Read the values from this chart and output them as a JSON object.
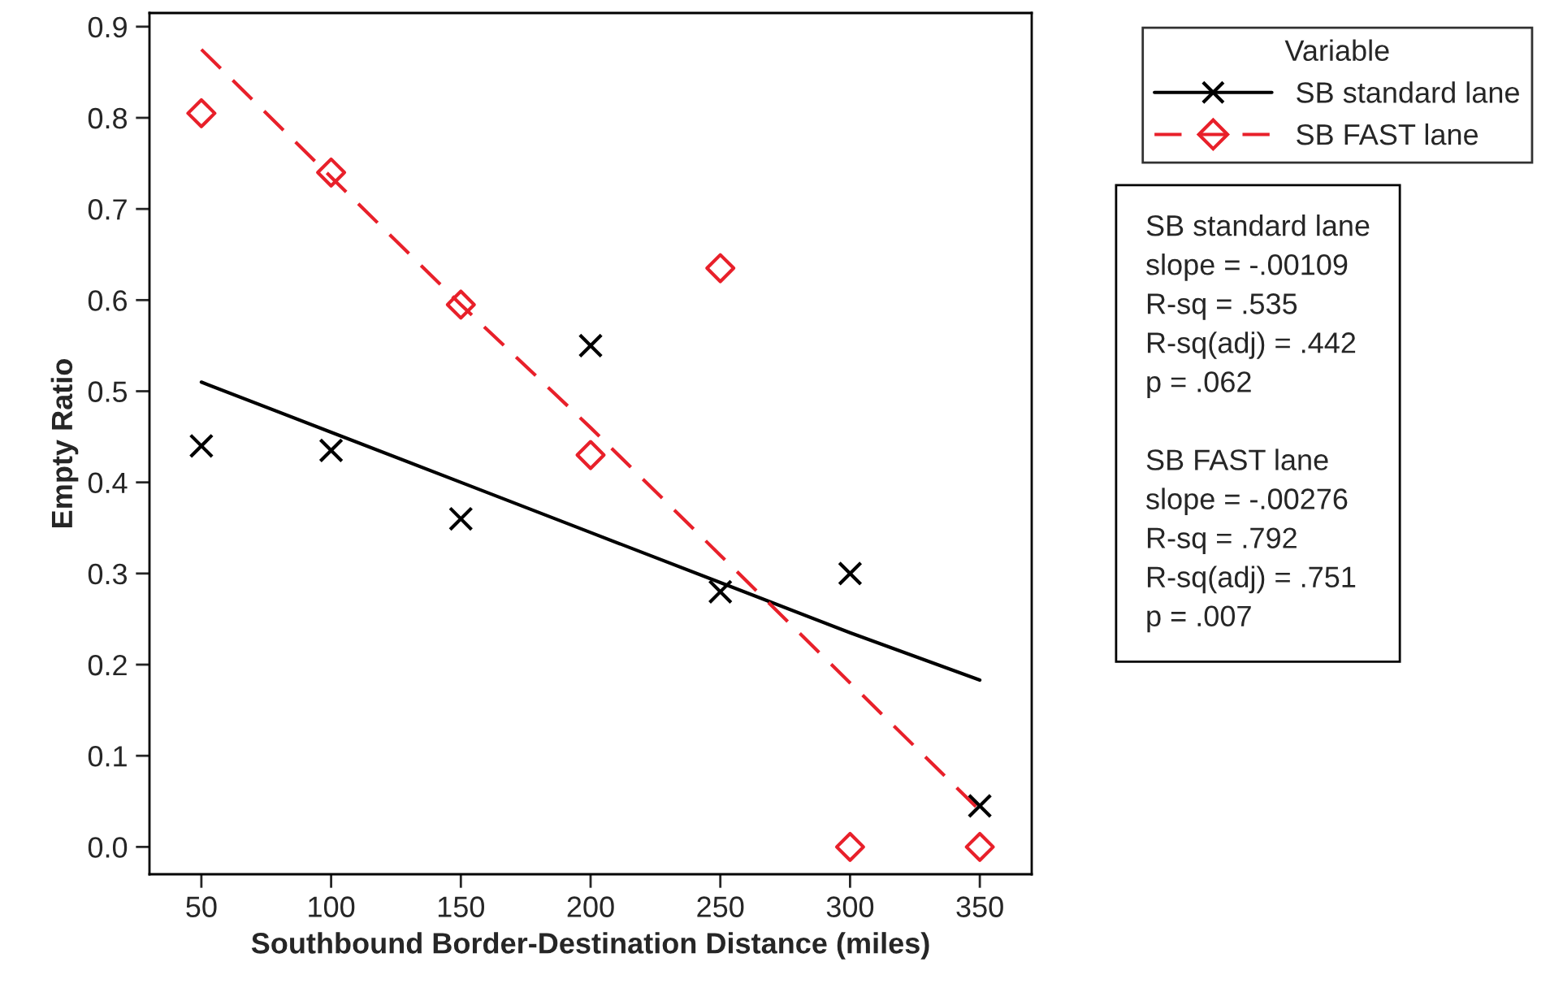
{
  "chart_data": {
    "type": "scatter",
    "xlabel": "Southbound Border-Destination Distance (miles)",
    "ylabel": "Empty Ratio",
    "x": [
      50,
      100,
      150,
      200,
      250,
      300,
      350
    ],
    "series": [
      {
        "name": "SB standard lane",
        "type": "scatter",
        "color": "#000000",
        "marker": "cross",
        "values": [
          0.44,
          0.435,
          0.36,
          0.55,
          0.28,
          0.3,
          0.045
        ]
      },
      {
        "name": "SB FAST lane",
        "type": "scatter",
        "color": "#e8202a",
        "marker": "diamond",
        "values": [
          0.805,
          0.74,
          0.595,
          0.43,
          0.635,
          0.0,
          0.0
        ]
      },
      {
        "type": "line",
        "color": "#000000",
        "line_style": "solid",
        "values": [
          0.51,
          0.455,
          0.4,
          0.345,
          0.29,
          0.235,
          0.183
        ]
      },
      {
        "type": "line",
        "color": "#e8202a",
        "line_style": "dashed",
        "values": [
          0.875,
          0.735,
          0.595,
          0.46,
          0.32,
          0.18,
          0.04
        ]
      }
    ],
    "legend_title": "Variable",
    "legend": "top right",
    "xlim": [
      30,
      370
    ],
    "xticks": [
      50,
      100,
      150,
      200,
      250,
      300,
      350
    ],
    "ylim": [
      -0.03,
      0.915
    ],
    "yticks": [
      {
        "value": 0.0,
        "label": "0.0"
      },
      0.1,
      0.2,
      0.3,
      0.4,
      0.5,
      0.6,
      0.7,
      0.8,
      0.9
    ],
    "grid": false,
    "annotations": [
      "SB standard lane\nslope = -.00109\nR-sq = .535\nR-sq(adj) = .442\np = .062\n\nSB FAST lane\nslope = -.00276\nR-sq = .792\nR-sq(adj) = .751\np = .007"
    ]
  }
}
